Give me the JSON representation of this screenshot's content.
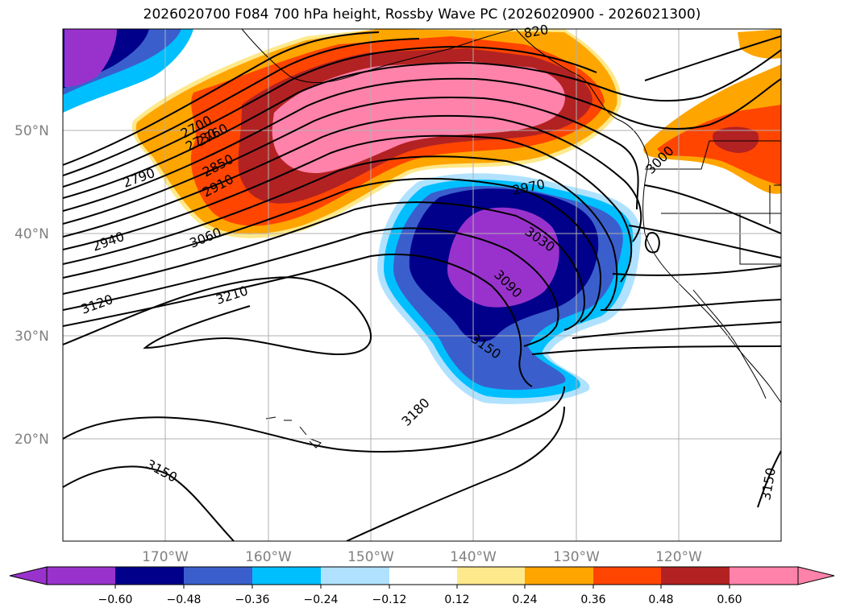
{
  "title": "2026020700 F084 700 hPa height, Rossby Wave PC (2026020900 - 2026021300)",
  "lat_labels": [
    {
      "text": "50°N",
      "lat": 50
    },
    {
      "text": "40°N",
      "lat": 40
    },
    {
      "text": "30°N",
      "lat": 30
    },
    {
      "text": "20°N",
      "lat": 20
    }
  ],
  "lon_labels": [
    {
      "text": "170°W",
      "lon": -170
    },
    {
      "text": "160°W",
      "lon": -160
    },
    {
      "text": "150°W",
      "lon": -150
    },
    {
      "text": "140°W",
      "lon": -140
    },
    {
      "text": "130°W",
      "lon": -130
    },
    {
      "text": "120°W",
      "lon": -120
    }
  ],
  "contour_labels": [
    {
      "text": "2700"
    },
    {
      "text": "2760"
    },
    {
      "text": "2730"
    },
    {
      "text": "2790"
    },
    {
      "text": "2850"
    },
    {
      "text": "2910"
    },
    {
      "text": "2940"
    },
    {
      "text": "3060"
    },
    {
      "text": "3120"
    },
    {
      "text": "3210"
    },
    {
      "text": "2970"
    },
    {
      "text": "3030"
    },
    {
      "text": "3090"
    },
    {
      "text": "3150"
    },
    {
      "text": "3180"
    },
    {
      "text": "3150"
    },
    {
      "text": "3150"
    },
    {
      "text": "3000"
    },
    {
      "text": "820"
    }
  ],
  "colorbar": {
    "tick_labels": [
      "−0.60",
      "−0.48",
      "−0.36",
      "−0.24",
      "−0.12",
      "0.12",
      "0.24",
      "0.36",
      "0.48",
      "0.60"
    ],
    "colors": [
      "#9932cc",
      "#00008b",
      "#3a5fcd",
      "#00bfff",
      "#b0e2ff",
      "#ffffff",
      "#fee98c",
      "#ffa500",
      "#ff4500",
      "#b22222",
      "#ff82ab",
      "#ff82ab"
    ]
  }
}
